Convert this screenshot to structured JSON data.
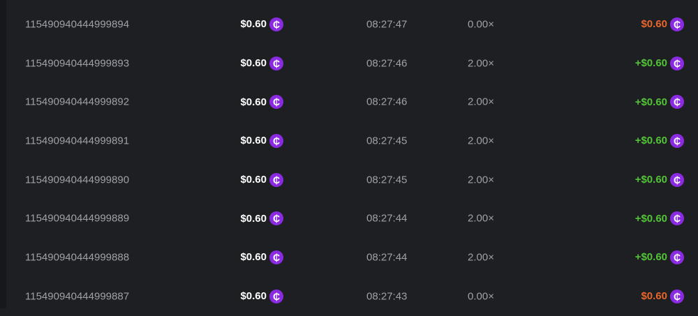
{
  "colors": {
    "loss": "#e8662a",
    "win": "#52c435",
    "coin": "#8a2be2"
  },
  "coin_icon": "currency-coin-icon",
  "coin_glyph": "₵",
  "rows": [
    {
      "id": "115490940444999894",
      "bet": "$0.60",
      "time": "08:27:47",
      "multiplier": "0.00×",
      "payout": "$0.60",
      "result": "loss"
    },
    {
      "id": "115490940444999893",
      "bet": "$0.60",
      "time": "08:27:46",
      "multiplier": "2.00×",
      "payout": "+$0.60",
      "result": "win"
    },
    {
      "id": "115490940444999892",
      "bet": "$0.60",
      "time": "08:27:46",
      "multiplier": "2.00×",
      "payout": "+$0.60",
      "result": "win"
    },
    {
      "id": "115490940444999891",
      "bet": "$0.60",
      "time": "08:27:45",
      "multiplier": "2.00×",
      "payout": "+$0.60",
      "result": "win"
    },
    {
      "id": "115490940444999890",
      "bet": "$0.60",
      "time": "08:27:45",
      "multiplier": "2.00×",
      "payout": "+$0.60",
      "result": "win"
    },
    {
      "id": "115490940444999889",
      "bet": "$0.60",
      "time": "08:27:44",
      "multiplier": "2.00×",
      "payout": "+$0.60",
      "result": "win"
    },
    {
      "id": "115490940444999888",
      "bet": "$0.60",
      "time": "08:27:44",
      "multiplier": "2.00×",
      "payout": "+$0.60",
      "result": "win"
    },
    {
      "id": "115490940444999887",
      "bet": "$0.60",
      "time": "08:27:43",
      "multiplier": "0.00×",
      "payout": "$0.60",
      "result": "loss"
    }
  ]
}
